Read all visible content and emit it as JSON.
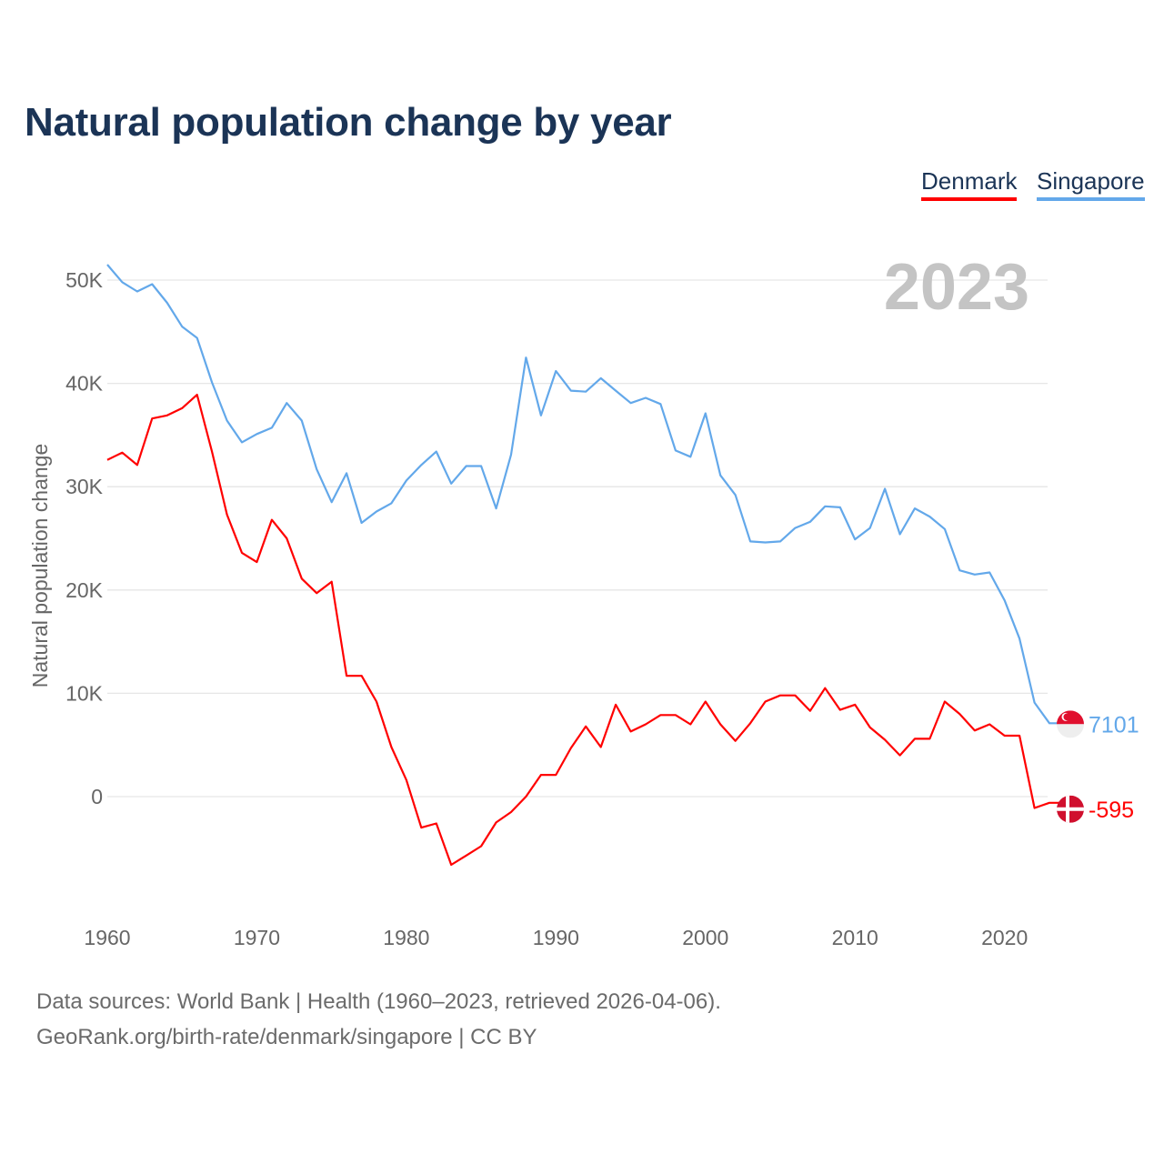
{
  "chart_data": {
    "type": "line",
    "title": "Natural population change by year",
    "ylabel": "Natural population change",
    "xlabel": "",
    "ylim": [
      -10000,
      55000
    ],
    "xlim": [
      1960,
      2023
    ],
    "yticks": [
      0,
      10000,
      20000,
      30000,
      40000,
      50000
    ],
    "ytick_labels": [
      "0",
      "10K",
      "20K",
      "30K",
      "40K",
      "50K"
    ],
    "xticks": [
      1960,
      1970,
      1980,
      1990,
      2000,
      2010,
      2020
    ],
    "xtick_labels": [
      "1960",
      "1970",
      "1980",
      "1990",
      "2000",
      "2010",
      "2020"
    ],
    "grid": true,
    "legend_position": "top-right",
    "year_label": "2023",
    "x_start": 1960,
    "series": [
      {
        "name": "Denmark",
        "color": "#ff0000",
        "end_label": "-595",
        "flag": "denmark-flag",
        "values": [
          32600,
          33300,
          32100,
          36600,
          36900,
          37600,
          38900,
          33400,
          27300,
          23600,
          22700,
          26800,
          25000,
          21100,
          19700,
          20800,
          11700,
          11700,
          9200,
          4800,
          1600,
          -3000,
          -2600,
          -6600,
          -5700,
          -4800,
          -2500,
          -1500,
          0,
          2100,
          2100,
          4700,
          6800,
          4800,
          8900,
          6300,
          7000,
          7900,
          7900,
          7000,
          9200,
          7000,
          5400,
          7100,
          9200,
          9800,
          9800,
          8300,
          10500,
          8400,
          8900,
          6700,
          5500,
          4000,
          5600,
          5600,
          9200,
          8000,
          6400,
          7000,
          5900,
          5900,
          -1100,
          -595
        ]
      },
      {
        "name": "Singapore",
        "color": "#63a8ea",
        "end_label": "7101",
        "flag": "singapore-flag",
        "values": [
          51500,
          49800,
          48900,
          49600,
          47800,
          45500,
          44400,
          40100,
          36400,
          34300,
          35100,
          35700,
          38100,
          36400,
          31700,
          28500,
          31300,
          26500,
          27600,
          28400,
          30600,
          32100,
          33400,
          30300,
          32000,
          32000,
          27900,
          33100,
          42500,
          36900,
          41200,
          39300,
          39200,
          40500,
          39300,
          38100,
          38600,
          38000,
          33500,
          32900,
          37100,
          31100,
          29200,
          24700,
          24600,
          24700,
          26000,
          26600,
          28100,
          28000,
          24900,
          26000,
          29800,
          25400,
          27900,
          27100,
          25900,
          21900,
          21500,
          21700,
          19000,
          15300,
          9100,
          7101
        ]
      }
    ]
  },
  "footer": {
    "line1": "Data sources: World Bank | Health (1960–2023, retrieved 2026-04-06).",
    "line2": "GeoRank.org/birth-rate/denmark/singapore | CC BY"
  }
}
